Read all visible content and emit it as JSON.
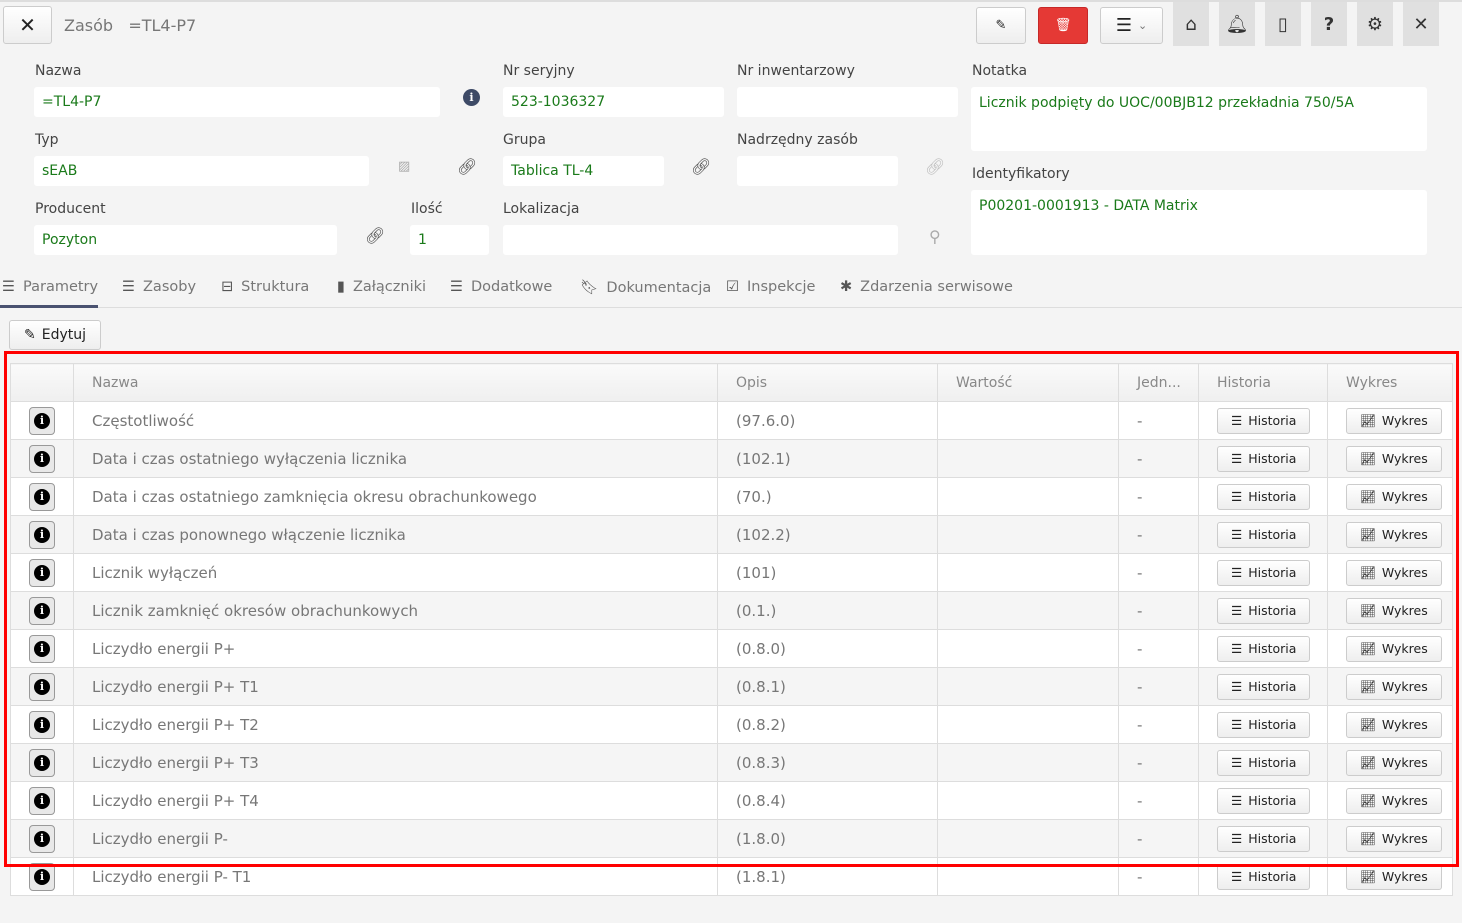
{
  "header": {
    "close_icon": "x-icon",
    "section": "Zasób",
    "title": "=TL4-P7",
    "actions": [
      "edit-icon",
      "trash-icon",
      "menu-icon",
      "home-icon",
      "bell-icon",
      "mobile-icon",
      "help-icon",
      "gear-icon",
      "close-icon"
    ],
    "delete_color": "#e53935"
  },
  "form": {
    "nazwa": {
      "label": "Nazwa",
      "value": "=TL4-P7"
    },
    "nr_seryjny": {
      "label": "Nr seryjny",
      "value": "523-1036327"
    },
    "nr_inwentarzowy": {
      "label": "Nr inwentarzowy",
      "value": ""
    },
    "notatka": {
      "label": "Notatka",
      "value": "Licznik podpięty do UOC/00BJB12 przekładnia 750/5A"
    },
    "typ": {
      "label": "Typ",
      "value": "sEAB"
    },
    "grupa": {
      "label": "Grupa",
      "value": "Tablica TL-4"
    },
    "nadrzedny": {
      "label": "Nadrzędny zasób",
      "value": ""
    },
    "identyfikatory": {
      "label": "Identyfikatory",
      "value": "P00201-0001913 - DATA Matrix"
    },
    "producent": {
      "label": "Producent",
      "value": "Pozyton"
    },
    "ilosc": {
      "label": "Ilość",
      "value": "1"
    },
    "lokalizacja": {
      "label": "Lokalizacja",
      "value": ""
    }
  },
  "tabs": [
    {
      "label": "Parametry",
      "active": true
    },
    {
      "label": "Zasoby"
    },
    {
      "label": "Struktura"
    },
    {
      "label": "Załączniki"
    },
    {
      "label": "Dodatkowe"
    },
    {
      "label": "Dokumentacja"
    },
    {
      "label": "Inspekcje"
    },
    {
      "label": "Zdarzenia serwisowe"
    }
  ],
  "edit_button": "Edytuj",
  "table": {
    "columns": [
      "",
      "Nazwa",
      "Opis",
      "Wartość",
      "Jedn...",
      "Historia",
      "Wykres"
    ],
    "history_label": "Historia",
    "chart_label": "Wykres",
    "rows": [
      {
        "name": "Częstotliwość",
        "desc": "(97.6.0)",
        "value": "",
        "unit": "-"
      },
      {
        "name": "Data i czas ostatniego wyłączenia licznika",
        "desc": "(102.1)",
        "value": "",
        "unit": "-"
      },
      {
        "name": "Data i czas ostatniego zamknięcia okresu obrachunkowego",
        "desc": "(70.)",
        "value": "",
        "unit": "-"
      },
      {
        "name": "Data i czas ponownego włączenie licznika",
        "desc": "(102.2)",
        "value": "",
        "unit": "-"
      },
      {
        "name": "Licznik wyłączeń",
        "desc": "(101)",
        "value": "",
        "unit": "-"
      },
      {
        "name": "Licznik zamknięć okresów obrachunkowych",
        "desc": "(0.1.)",
        "value": "",
        "unit": "-"
      },
      {
        "name": "Liczydło energii P+",
        "desc": "(0.8.0)",
        "value": "",
        "unit": "-"
      },
      {
        "name": "Liczydło energii P+ T1",
        "desc": "(0.8.1)",
        "value": "",
        "unit": "-"
      },
      {
        "name": "Liczydło energii P+ T2",
        "desc": "(0.8.2)",
        "value": "",
        "unit": "-"
      },
      {
        "name": "Liczydło energii P+ T3",
        "desc": "(0.8.3)",
        "value": "",
        "unit": "-"
      },
      {
        "name": "Liczydło energii P+ T4",
        "desc": "(0.8.4)",
        "value": "",
        "unit": "-"
      },
      {
        "name": "Liczydło energii P-",
        "desc": "(1.8.0)",
        "value": "",
        "unit": "-"
      },
      {
        "name": "Liczydło energii P- T1",
        "desc": "(1.8.1)",
        "value": "",
        "unit": "-"
      }
    ]
  }
}
